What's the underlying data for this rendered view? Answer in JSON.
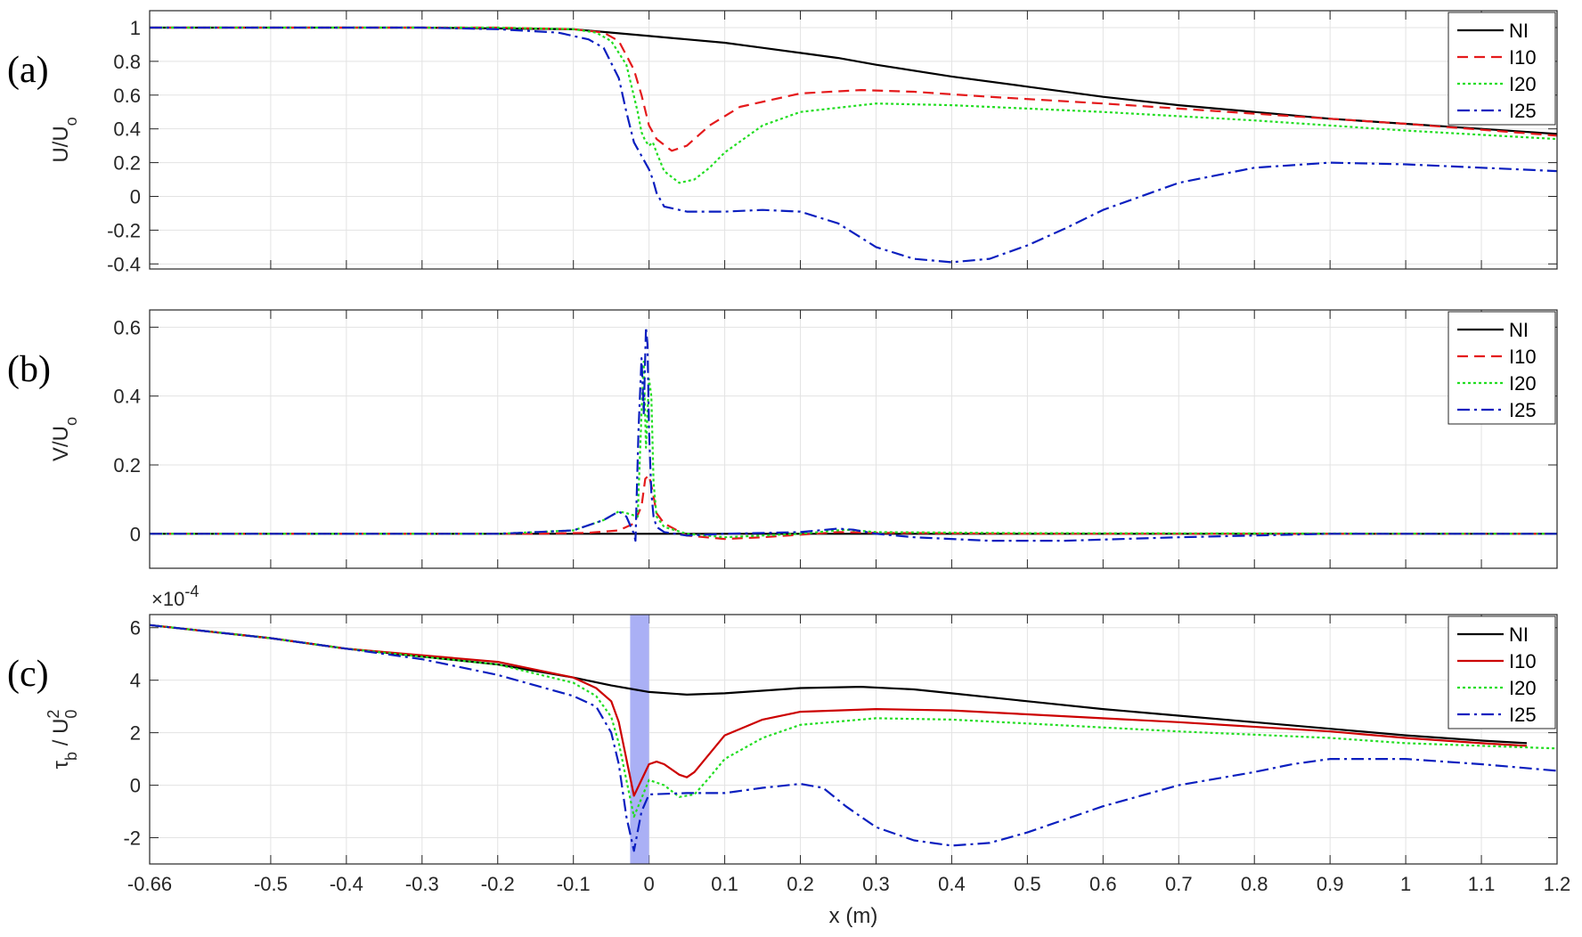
{
  "figure": {
    "x_ticks": [
      "-0.66",
      "-0.5",
      "-0.4",
      "-0.3",
      "-0.2",
      "-0.1",
      "0",
      "0.1",
      "0.2",
      "0.3",
      "0.4",
      "0.5",
      "0.6",
      "0.7",
      "0.8",
      "0.9",
      "1",
      "1.1",
      "1.2"
    ],
    "x_label": "x (m)",
    "legend_position": "top-right"
  },
  "chart_data": [
    {
      "type": "line",
      "panel_label": "(a)",
      "ylabel_main": "U/U",
      "ylabel_sub": "o",
      "xlim": [
        -0.66,
        1.2
      ],
      "ylim": [
        -0.43,
        1.1
      ],
      "y_ticks": [
        -0.4,
        -0.2,
        0,
        0.2,
        0.4,
        0.6,
        0.8,
        1
      ],
      "grid": true,
      "legend": [
        "NI",
        "I10",
        "I20",
        "I25"
      ],
      "series": [
        {
          "name": "NI",
          "color": "#000000",
          "dash": "solid",
          "x": [
            -0.66,
            -0.3,
            -0.1,
            -0.05,
            0,
            0.05,
            0.1,
            0.15,
            0.2,
            0.25,
            0.3,
            0.4,
            0.5,
            0.6,
            0.7,
            0.8,
            0.9,
            1.0,
            1.1,
            1.2
          ],
          "y": [
            1.0,
            1.0,
            0.99,
            0.97,
            0.95,
            0.93,
            0.91,
            0.88,
            0.85,
            0.82,
            0.78,
            0.71,
            0.65,
            0.59,
            0.54,
            0.5,
            0.46,
            0.43,
            0.4,
            0.37
          ]
        },
        {
          "name": "I10",
          "color": "#e41a1c",
          "dash": "dashed",
          "x": [
            -0.66,
            -0.2,
            -0.1,
            -0.06,
            -0.04,
            -0.02,
            -0.01,
            0,
            0.01,
            0.03,
            0.05,
            0.08,
            0.12,
            0.2,
            0.28,
            0.35,
            0.45,
            0.6,
            0.8,
            1.0,
            1.2
          ],
          "y": [
            1.0,
            1.0,
            0.99,
            0.97,
            0.92,
            0.75,
            0.6,
            0.42,
            0.34,
            0.27,
            0.3,
            0.42,
            0.53,
            0.61,
            0.63,
            0.62,
            0.59,
            0.55,
            0.49,
            0.43,
            0.36
          ]
        },
        {
          "name": "I20",
          "color": "#22dd22",
          "dash": "dotted",
          "x": [
            -0.66,
            -0.2,
            -0.1,
            -0.07,
            -0.05,
            -0.03,
            -0.015,
            -0.01,
            -0.005,
            0,
            0.005,
            0.01,
            0.02,
            0.04,
            0.06,
            0.08,
            0.1,
            0.15,
            0.2,
            0.3,
            0.4,
            0.6,
            0.8,
            1.0,
            1.2
          ],
          "y": [
            1.0,
            1.0,
            0.99,
            0.97,
            0.92,
            0.78,
            0.5,
            0.38,
            0.33,
            0.3,
            0.32,
            0.26,
            0.15,
            0.08,
            0.1,
            0.17,
            0.26,
            0.42,
            0.5,
            0.55,
            0.54,
            0.5,
            0.45,
            0.39,
            0.34
          ]
        },
        {
          "name": "I25",
          "color": "#0b1fbf",
          "dash": "dashdot",
          "x": [
            -0.66,
            -0.3,
            -0.2,
            -0.12,
            -0.08,
            -0.06,
            -0.04,
            -0.03,
            -0.02,
            -0.01,
            0,
            0.005,
            0.01,
            0.02,
            0.05,
            0.1,
            0.15,
            0.2,
            0.25,
            0.3,
            0.35,
            0.4,
            0.45,
            0.5,
            0.55,
            0.6,
            0.7,
            0.8,
            0.9,
            1.0,
            1.1,
            1.2
          ],
          "y": [
            1.0,
            1.0,
            0.99,
            0.97,
            0.93,
            0.88,
            0.7,
            0.5,
            0.32,
            0.24,
            0.16,
            0.1,
            0.02,
            -0.06,
            -0.09,
            -0.09,
            -0.08,
            -0.09,
            -0.16,
            -0.3,
            -0.37,
            -0.39,
            -0.37,
            -0.29,
            -0.19,
            -0.08,
            0.08,
            0.17,
            0.2,
            0.19,
            0.17,
            0.15
          ]
        }
      ]
    },
    {
      "type": "line",
      "panel_label": "(b)",
      "ylabel_main": "V/U",
      "ylabel_sub": "o",
      "xlim": [
        -0.66,
        1.2
      ],
      "ylim": [
        -0.1,
        0.65
      ],
      "y_ticks": [
        0,
        0.2,
        0.4,
        0.6
      ],
      "grid": true,
      "legend": [
        "NI",
        "I10",
        "I20",
        "I25"
      ],
      "series": [
        {
          "name": "NI",
          "color": "#000000",
          "dash": "solid",
          "x": [
            -0.66,
            1.2
          ],
          "y": [
            0,
            0
          ]
        },
        {
          "name": "I10",
          "color": "#e41a1c",
          "dash": "dashed",
          "x": [
            -0.66,
            -0.15,
            -0.08,
            -0.04,
            -0.02,
            -0.01,
            -0.005,
            0,
            0.005,
            0.01,
            0.02,
            0.05,
            0.1,
            0.15,
            0.25,
            0.3,
            0.5,
            1.2
          ],
          "y": [
            0,
            0,
            0.003,
            0.01,
            0.03,
            0.08,
            0.16,
            0.17,
            0.12,
            0.06,
            0.03,
            -0.005,
            -0.015,
            -0.01,
            0.005,
            0.003,
            0,
            0
          ]
        },
        {
          "name": "I20",
          "color": "#22dd22",
          "dash": "dotted",
          "x": [
            -0.66,
            -0.2,
            -0.1,
            -0.06,
            -0.04,
            -0.03,
            -0.015,
            -0.01,
            -0.007,
            -0.004,
            0,
            0.003,
            0.006,
            0.01,
            0.02,
            0.05,
            0.1,
            0.2,
            0.26,
            0.3,
            0.5,
            1.2
          ],
          "y": [
            0,
            0,
            0.01,
            0.04,
            0.065,
            0.06,
            0.05,
            0.35,
            0.5,
            0.25,
            0.45,
            0.4,
            0.15,
            0.05,
            0.02,
            0,
            -0.01,
            0,
            0.012,
            0.005,
            0.002,
            0
          ]
        },
        {
          "name": "I25",
          "color": "#0b1fbf",
          "dash": "dashdot",
          "x": [
            -0.66,
            -0.2,
            -0.1,
            -0.06,
            -0.04,
            -0.03,
            -0.02,
            -0.018,
            -0.014,
            -0.01,
            -0.007,
            -0.004,
            -0.002,
            0,
            0.003,
            0.006,
            0.01,
            0.02,
            0.05,
            0.1,
            0.2,
            0.25,
            0.27,
            0.3,
            0.35,
            0.45,
            0.55,
            0.7,
            0.9,
            1.2
          ],
          "y": [
            0,
            0,
            0.01,
            0.04,
            0.065,
            0.05,
            0.0,
            -0.02,
            0.3,
            0.51,
            0.35,
            0.6,
            0.55,
            0.3,
            0.12,
            0.05,
            0.02,
            0.005,
            -0.005,
            0,
            0.005,
            0.015,
            0.012,
            0,
            -0.01,
            -0.02,
            -0.02,
            -0.01,
            0,
            0
          ]
        }
      ]
    },
    {
      "type": "line",
      "panel_label": "(c)",
      "ylabel_main": "τ",
      "ylabel_sub": "b",
      "ylabel_rest": " / U",
      "ylabel_sup": "2",
      "ylabel_sub2": "0",
      "exponent_label": "×10",
      "exponent_value": "-4",
      "xlim": [
        -0.66,
        1.2
      ],
      "ylim": [
        -3.0,
        6.5
      ],
      "y_ticks": [
        -2,
        0,
        2,
        4,
        6
      ],
      "grid": true,
      "legend": [
        "NI",
        "I10",
        "I20",
        "I25"
      ],
      "shaded_band_x": [
        -0.025,
        0.0
      ],
      "shaded_band_color": "#aab0f5",
      "series": [
        {
          "name": "NI",
          "color": "#000000",
          "dash": "solid",
          "x": [
            -0.66,
            -0.5,
            -0.4,
            -0.3,
            -0.2,
            -0.1,
            -0.05,
            -0.02,
            0,
            0.05,
            0.1,
            0.2,
            0.28,
            0.35,
            0.4,
            0.5,
            0.6,
            0.7,
            0.8,
            0.9,
            1.0,
            1.1,
            1.16
          ],
          "y": [
            6.1,
            5.6,
            5.2,
            4.9,
            4.6,
            4.1,
            3.8,
            3.65,
            3.55,
            3.45,
            3.5,
            3.7,
            3.75,
            3.65,
            3.5,
            3.2,
            2.9,
            2.65,
            2.4,
            2.15,
            1.9,
            1.7,
            1.6
          ]
        },
        {
          "name": "I10",
          "color": "#cc0000",
          "dash": "solid",
          "x": [
            -0.66,
            -0.5,
            -0.4,
            -0.3,
            -0.2,
            -0.1,
            -0.07,
            -0.05,
            -0.04,
            -0.03,
            -0.02,
            0,
            0.01,
            0.02,
            0.04,
            0.05,
            0.06,
            0.08,
            0.1,
            0.15,
            0.2,
            0.3,
            0.4,
            0.5,
            0.7,
            0.9,
            1.0,
            1.1,
            1.16
          ],
          "y": [
            6.1,
            5.6,
            5.2,
            4.95,
            4.7,
            4.1,
            3.7,
            3.2,
            2.4,
            1.0,
            -0.4,
            0.8,
            0.9,
            0.8,
            0.4,
            0.3,
            0.5,
            1.2,
            1.9,
            2.5,
            2.8,
            2.9,
            2.85,
            2.7,
            2.4,
            2.05,
            1.8,
            1.6,
            1.5
          ]
        },
        {
          "name": "I20",
          "color": "#22dd22",
          "dash": "dotted",
          "x": [
            -0.66,
            -0.5,
            -0.4,
            -0.3,
            -0.2,
            -0.1,
            -0.07,
            -0.05,
            -0.04,
            -0.03,
            -0.02,
            0,
            0.02,
            0.04,
            0.06,
            0.08,
            0.1,
            0.15,
            0.2,
            0.3,
            0.4,
            0.5,
            0.7,
            0.9,
            1.0,
            1.2
          ],
          "y": [
            6.1,
            5.6,
            5.2,
            4.9,
            4.6,
            3.9,
            3.4,
            2.6,
            1.6,
            0.2,
            -1.2,
            0.2,
            0.0,
            -0.45,
            -0.35,
            0.3,
            1.0,
            1.8,
            2.3,
            2.55,
            2.5,
            2.35,
            2.05,
            1.8,
            1.6,
            1.4
          ]
        },
        {
          "name": "I25",
          "color": "#0b1fbf",
          "dash": "dashdot",
          "x": [
            -0.66,
            -0.5,
            -0.4,
            -0.3,
            -0.25,
            -0.2,
            -0.15,
            -0.1,
            -0.07,
            -0.05,
            -0.04,
            -0.03,
            -0.02,
            -0.01,
            0,
            0.05,
            0.1,
            0.15,
            0.2,
            0.23,
            0.26,
            0.3,
            0.35,
            0.4,
            0.45,
            0.5,
            0.6,
            0.7,
            0.8,
            0.85,
            0.9,
            1.0,
            1.1,
            1.2
          ],
          "y": [
            6.1,
            5.6,
            5.2,
            4.8,
            4.5,
            4.2,
            3.8,
            3.4,
            3.0,
            2.0,
            0.8,
            -1.2,
            -2.5,
            -1.0,
            -0.35,
            -0.3,
            -0.3,
            -0.1,
            0.05,
            -0.1,
            -0.8,
            -1.6,
            -2.1,
            -2.3,
            -2.2,
            -1.8,
            -0.8,
            0.0,
            0.5,
            0.8,
            1.0,
            1.0,
            0.8,
            0.55
          ]
        }
      ]
    }
  ]
}
